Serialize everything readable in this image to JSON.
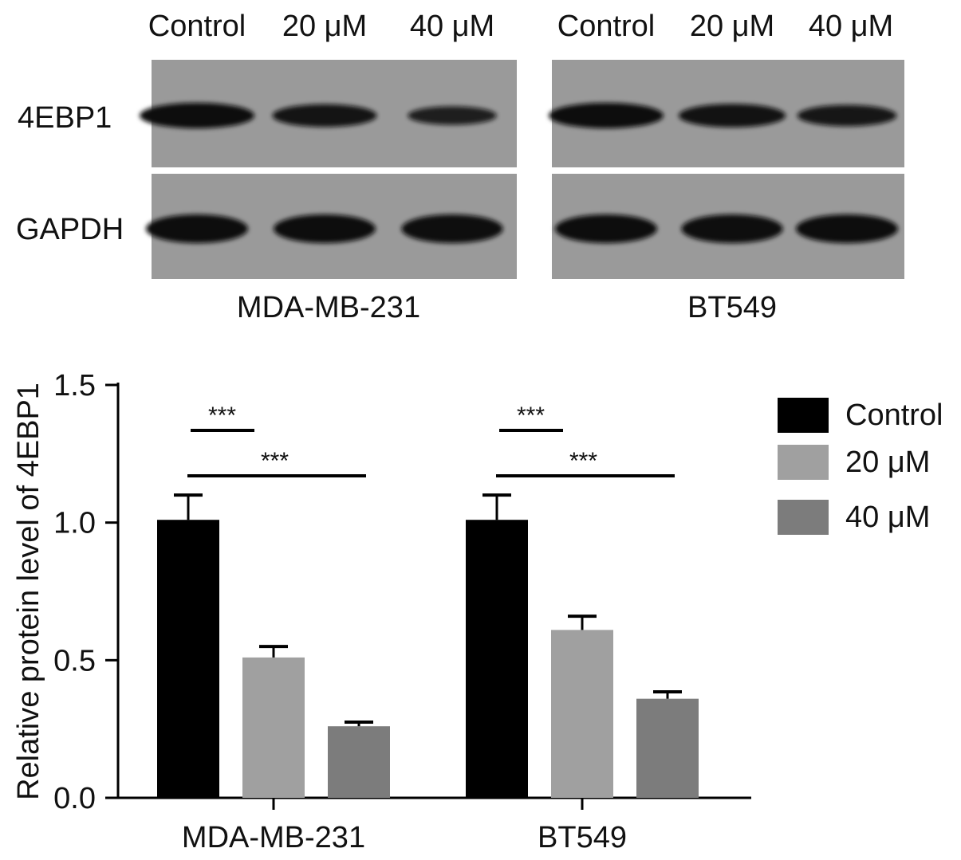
{
  "blot": {
    "lane_labels": [
      "Control",
      "20 μM",
      "40 μM"
    ],
    "rows": [
      "4EBP1",
      "GAPDH"
    ],
    "panels": [
      {
        "cell_line": "MDA-MB-231",
        "band_intensity": {
          "4EBP1": [
            1.0,
            0.8,
            0.5
          ],
          "GAPDH": [
            1.0,
            1.0,
            0.95
          ]
        }
      },
      {
        "cell_line": "BT549",
        "band_intensity": {
          "4EBP1": [
            1.0,
            0.85,
            0.7
          ],
          "GAPDH": [
            1.0,
            0.95,
            1.0
          ]
        }
      }
    ],
    "band_color": "#0e0e0e",
    "membrane_color": "#9a9a9a"
  },
  "chart_data": {
    "type": "bar",
    "categories": [
      "MDA-MB-231",
      "BT549"
    ],
    "series": [
      {
        "name": "Control",
        "values": [
          1.01,
          1.01
        ],
        "errors": [
          0.09,
          0.09
        ],
        "color": "#000000"
      },
      {
        "name": "20 μM",
        "values": [
          0.51,
          0.61
        ],
        "errors": [
          0.04,
          0.05
        ],
        "color": "#a0a0a0"
      },
      {
        "name": "40 μM",
        "values": [
          0.26,
          0.36
        ],
        "errors": [
          0.015,
          0.025
        ],
        "color": "#7c7c7c"
      }
    ],
    "ylabel": "Relative protein level of 4EBP1",
    "xlabel": "",
    "ylim": [
      0,
      1.5
    ],
    "yticks": [
      0.0,
      0.5,
      1.0,
      1.5
    ],
    "ytick_labels": [
      "0.0",
      "0.5",
      "1.0",
      "1.5"
    ],
    "significance": [
      {
        "category": "MDA-MB-231",
        "from": "Control",
        "to": "20 μM",
        "label": "***"
      },
      {
        "category": "MDA-MB-231",
        "from": "Control",
        "to": "40 μM",
        "label": "***"
      },
      {
        "category": "BT549",
        "from": "Control",
        "to": "20 μM",
        "label": "***"
      },
      {
        "category": "BT549",
        "from": "Control",
        "to": "40 μM",
        "label": "***"
      }
    ],
    "legend_position": "top-right",
    "grid": false
  }
}
